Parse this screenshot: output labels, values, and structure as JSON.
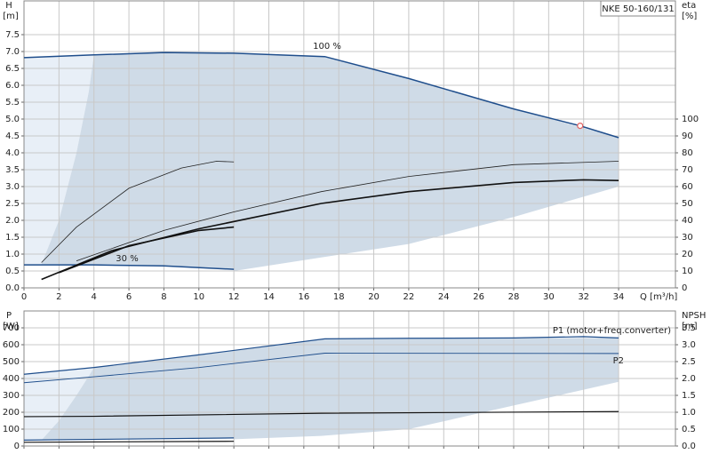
{
  "chart_data": [
    {
      "type": "line",
      "title": "NKE 50-160/131",
      "xlabel": "Q [m³/h]",
      "ylabel": "H",
      "yunit": "[m]",
      "y2label": "eta",
      "y2unit": "[%]",
      "xlim": [
        0,
        37.25
      ],
      "ylim": [
        0,
        8.5
      ],
      "y2lim": [
        0,
        170
      ],
      "xticks": [
        0,
        2,
        4,
        6,
        8,
        10,
        12,
        14,
        16,
        18,
        20,
        22,
        24,
        26,
        28,
        30,
        32,
        34
      ],
      "xtick_labels": true,
      "yticks": [
        {
          "value": 0,
          "label": "0.0"
        },
        {
          "value": 0.5,
          "label": "0.5"
        },
        {
          "value": 1,
          "label": "1.0"
        },
        {
          "value": 1.5,
          "label": "1.5"
        },
        {
          "value": 2,
          "label": "2.0"
        },
        {
          "value": 2.5,
          "label": "2.5"
        },
        {
          "value": 3,
          "label": "3.0"
        },
        {
          "value": 3.5,
          "label": "3.5"
        },
        {
          "value": 4,
          "label": "4.0"
        },
        {
          "value": 4.5,
          "label": "4.5"
        },
        {
          "value": 5,
          "label": "5.0"
        },
        {
          "value": 5.5,
          "label": "5.5"
        },
        {
          "value": 6,
          "label": "6.0"
        },
        {
          "value": 6.5,
          "label": "6.5"
        },
        {
          "value": 7,
          "label": "7.0"
        },
        {
          "value": 7.5,
          "label": "7.5"
        }
      ],
      "y2ticks": [
        0,
        10,
        20,
        30,
        40,
        50,
        60,
        70,
        80,
        90,
        100
      ],
      "grid": true,
      "regions": [
        {
          "color": "#e8eff7",
          "x": [
            0,
            4,
            3.7,
            3,
            2,
            1,
            0
          ],
          "y": [
            6.82,
            6.9,
            5.8,
            4,
            2,
            0.7,
            0.68
          ]
        },
        {
          "color": "#cfdbe7",
          "x": [
            4,
            8,
            12,
            17.2,
            22,
            28,
            34,
            34,
            28,
            22,
            17,
            12,
            12,
            8,
            4,
            1,
            2,
            3,
            3.7
          ],
          "y": [
            6.9,
            6.97,
            6.95,
            6.85,
            6.2,
            5.3,
            4.45,
            3,
            2.1,
            1.3,
            0.9,
            0.5,
            0.55,
            0.65,
            0.68,
            0.7,
            2,
            4,
            5.8
          ]
        }
      ],
      "series": [
        {
          "name": "100 %",
          "axis": "y",
          "color": "#1f4e8c",
          "width": 1.5,
          "x": [
            0,
            4,
            8,
            12,
            17.2,
            22,
            28,
            31.8,
            34
          ],
          "values": [
            6.82,
            6.9,
            6.97,
            6.95,
            6.85,
            6.2,
            5.3,
            4.8,
            4.45
          ]
        },
        {
          "name": "30 %",
          "axis": "y",
          "color": "#1f4e8c",
          "width": 1.5,
          "x": [
            0,
            4,
            8,
            12
          ],
          "values": [
            0.68,
            0.68,
            0.65,
            0.55
          ]
        },
        {
          "axis": "y2",
          "color": "#222222",
          "width": 0.8,
          "x": [
            1,
            3,
            6,
            9,
            11,
            12
          ],
          "values": [
            15,
            36,
            59,
            71,
            75,
            74.6
          ]
        },
        {
          "axis": "y2",
          "color": "#222222",
          "width": 0.8,
          "x": [
            3,
            8,
            12,
            17,
            22,
            28,
            34
          ],
          "values": [
            16,
            34,
            45,
            57,
            66,
            73,
            75
          ]
        },
        {
          "axis": "y2",
          "color": "#111111",
          "width": 1.6,
          "x": [
            1,
            5,
            10,
            17,
            22,
            28,
            32,
            34
          ],
          "values": [
            5,
            22,
            35,
            50,
            57,
            62.4,
            64,
            63.6
          ]
        },
        {
          "axis": "y2",
          "color": "#111111",
          "width": 1.6,
          "x": [
            2,
            6,
            10,
            12
          ],
          "values": [
            9,
            25,
            34,
            36
          ]
        }
      ],
      "marker": {
        "x": 31.8,
        "y": 4.8,
        "color": "#e06060"
      }
    },
    {
      "type": "line",
      "ylabel": "P",
      "yunit": "[W]",
      "y2label": "NPSH",
      "y2unit": "[m]",
      "xlim": [
        0,
        37.25
      ],
      "ylim": [
        0,
        800
      ],
      "y2lim": [
        0,
        4
      ],
      "xticks": [
        0,
        2,
        4,
        6,
        8,
        10,
        12,
        14,
        16,
        18,
        20,
        22,
        24,
        26,
        28,
        30,
        32,
        34
      ],
      "xtick_labels": false,
      "yticks": [
        0,
        100,
        200,
        300,
        400,
        500,
        600,
        700
      ],
      "y2ticks": [
        {
          "value": 0,
          "label": "0.0"
        },
        {
          "value": 0.5,
          "label": "0.5"
        },
        {
          "value": 1,
          "label": "1.0"
        },
        {
          "value": 1.5,
          "label": "1.5"
        },
        {
          "value": 2,
          "label": "2.0"
        },
        {
          "value": 2.5,
          "label": "2.5"
        },
        {
          "value": 3,
          "label": "3.0"
        },
        {
          "value": 3.5,
          "label": "3.5"
        }
      ],
      "grid": true,
      "regions": [
        {
          "color": "#e8eff7",
          "x": [
            0,
            4,
            3.8,
            3,
            2,
            1,
            0
          ],
          "y": [
            425,
            465,
            430,
            300,
            150,
            35,
            35
          ]
        },
        {
          "color": "#cfdbe7",
          "x": [
            4,
            10,
            17.2,
            22,
            28,
            34,
            34,
            28,
            22,
            17,
            12,
            12,
            4,
            1,
            2,
            3,
            3.8
          ],
          "y": [
            465,
            540,
            635,
            638,
            640,
            640,
            380,
            240,
            100,
            60,
            40,
            48,
            40,
            35,
            150,
            300,
            430
          ]
        }
      ],
      "series": [
        {
          "name": "P1 (motor+freq.converter)",
          "axis": "y",
          "color": "#1f4e8c",
          "width": 1.2,
          "x": [
            0,
            4,
            10,
            17.2,
            22,
            28,
            32,
            34
          ],
          "values": [
            425,
            465,
            540,
            635,
            638,
            640,
            648,
            640
          ]
        },
        {
          "name": "P2",
          "axis": "y",
          "color": "#1f4e8c",
          "width": 0.9,
          "x": [
            0,
            4,
            10,
            17.2,
            34
          ],
          "values": [
            375,
            410,
            465,
            550,
            548
          ]
        },
        {
          "axis": "y2",
          "color": "#111111",
          "width": 1.2,
          "x": [
            0,
            4,
            17,
            34
          ],
          "values": [
            0.87,
            0.88,
            0.97,
            1.02
          ]
        },
        {
          "axis": "y",
          "color": "#1f4e8c",
          "width": 1.2,
          "x": [
            0,
            12
          ],
          "values": [
            35,
            48
          ]
        },
        {
          "axis": "y",
          "color": "#111111",
          "width": 1.2,
          "x": [
            0,
            12
          ],
          "values": [
            22,
            28
          ]
        }
      ]
    }
  ]
}
